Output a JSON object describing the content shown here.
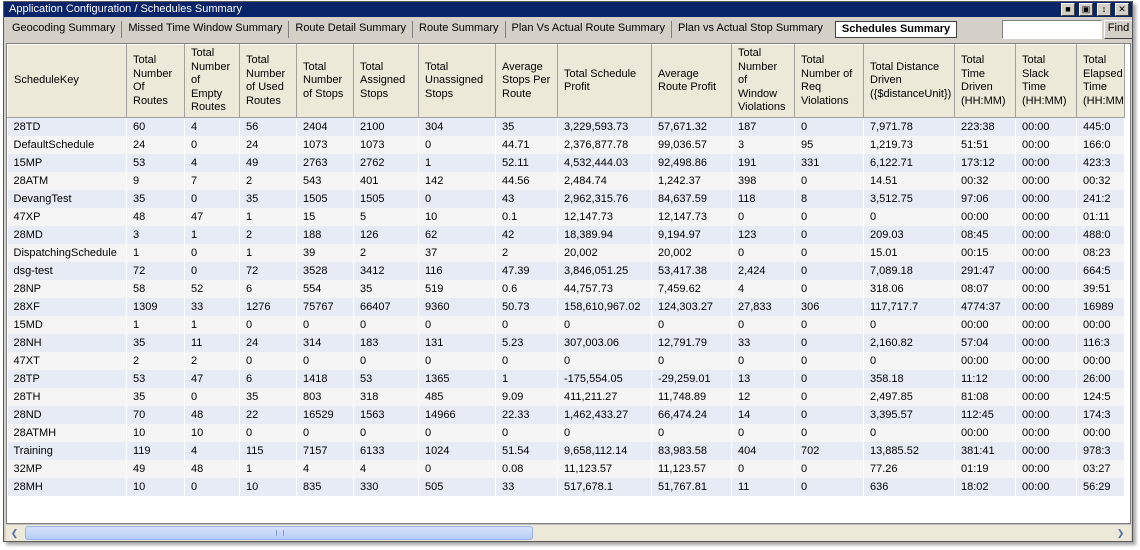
{
  "window": {
    "title": "Application Configuration / Schedules Summary",
    "buttons": [
      "save-icon",
      "lock-icon",
      "pin-icon",
      "close-icon"
    ]
  },
  "tabs": [
    {
      "label": "Geocoding Summary",
      "active": false
    },
    {
      "label": "Missed Time Window Summary",
      "active": false
    },
    {
      "label": "Route Detail Summary",
      "active": false
    },
    {
      "label": "Route Summary",
      "active": false
    },
    {
      "label": "Plan Vs Actual Route Summary",
      "active": false
    },
    {
      "label": "Plan vs Actual Stop Summary",
      "active": false
    },
    {
      "label": "Schedules Summary",
      "active": true
    }
  ],
  "search": {
    "value": "",
    "find_label": "Find"
  },
  "table": {
    "columns": [
      "ScheduleKey",
      "Total Number Of Routes",
      "Total Number of Empty Routes",
      "Total Number of Used Routes",
      "Total Number of Stops",
      "Total Assigned Stops",
      "Total Unassigned Stops",
      "Average Stops Per Route",
      "Total Schedule Profit",
      "Average Route Profit",
      "Total Number of Window Violations",
      "Total Number of Req Violations",
      "Total Distance Driven ({$distanceUnit})",
      "Total Time Driven (HH:MM)",
      "Total Slack Time (HH:MM)",
      "Total Elapsed Time (HH:MM)"
    ],
    "rows": [
      [
        "28TD",
        "60",
        "4",
        "56",
        "2404",
        "2100",
        "304",
        "35",
        "3,229,593.73",
        "57,671.32",
        "187",
        "0",
        "7,971.78",
        "223:38",
        "00:00",
        "445:0"
      ],
      [
        "DefaultSchedule",
        "24",
        "0",
        "24",
        "1073",
        "1073",
        "0",
        "44.71",
        "2,376,877.78",
        "99,036.57",
        "3",
        "95",
        "1,219.73",
        "51:51",
        "00:00",
        "166:0"
      ],
      [
        "15MP",
        "53",
        "4",
        "49",
        "2763",
        "2762",
        "1",
        "52.11",
        "4,532,444.03",
        "92,498.86",
        "191",
        "331",
        "6,122.71",
        "173:12",
        "00:00",
        "423:3"
      ],
      [
        "28ATM",
        "9",
        "7",
        "2",
        "543",
        "401",
        "142",
        "44.56",
        "2,484.74",
        "1,242.37",
        "398",
        "0",
        "14.51",
        "00:32",
        "00:00",
        "00:32"
      ],
      [
        "DevangTest",
        "35",
        "0",
        "35",
        "1505",
        "1505",
        "0",
        "43",
        "2,962,315.76",
        "84,637.59",
        "118",
        "8",
        "3,512.75",
        "97:06",
        "00:00",
        "241:2"
      ],
      [
        "47XP",
        "48",
        "47",
        "1",
        "15",
        "5",
        "10",
        "0.1",
        "12,147.73",
        "12,147.73",
        "0",
        "0",
        "0",
        "00:00",
        "00:00",
        "01:11"
      ],
      [
        "28MD",
        "3",
        "1",
        "2",
        "188",
        "126",
        "62",
        "42",
        "18,389.94",
        "9,194.97",
        "123",
        "0",
        "209.03",
        "08:45",
        "00:00",
        "488:0"
      ],
      [
        "DispatchingSchedule",
        "1",
        "0",
        "1",
        "39",
        "2",
        "37",
        "2",
        "20,002",
        "20,002",
        "0",
        "0",
        "15.01",
        "00:15",
        "00:00",
        "08:23"
      ],
      [
        "dsg-test",
        "72",
        "0",
        "72",
        "3528",
        "3412",
        "116",
        "47.39",
        "3,846,051.25",
        "53,417.38",
        "2,424",
        "0",
        "7,089.18",
        "291:47",
        "00:00",
        "664:5"
      ],
      [
        "28NP",
        "58",
        "52",
        "6",
        "554",
        "35",
        "519",
        "0.6",
        "44,757.73",
        "7,459.62",
        "4",
        "0",
        "318.06",
        "08:07",
        "00:00",
        "39:51"
      ],
      [
        "28XF",
        "1309",
        "33",
        "1276",
        "75767",
        "66407",
        "9360",
        "50.73",
        "158,610,967.02",
        "124,303.27",
        "27,833",
        "306",
        "117,717.7",
        "4774:37",
        "00:00",
        "16989"
      ],
      [
        "15MD",
        "1",
        "1",
        "0",
        "0",
        "0",
        "0",
        "0",
        "0",
        "0",
        "0",
        "0",
        "0",
        "00:00",
        "00:00",
        "00:00"
      ],
      [
        "28NH",
        "35",
        "11",
        "24",
        "314",
        "183",
        "131",
        "5.23",
        "307,003.06",
        "12,791.79",
        "33",
        "0",
        "2,160.82",
        "57:04",
        "00:00",
        "116:3"
      ],
      [
        "47XT",
        "2",
        "2",
        "0",
        "0",
        "0",
        "0",
        "0",
        "0",
        "0",
        "0",
        "0",
        "0",
        "00:00",
        "00:00",
        "00:00"
      ],
      [
        "28TP",
        "53",
        "47",
        "6",
        "1418",
        "53",
        "1365",
        "1",
        "-175,554.05",
        "-29,259.01",
        "13",
        "0",
        "358.18",
        "11:12",
        "00:00",
        "26:00"
      ],
      [
        "28TH",
        "35",
        "0",
        "35",
        "803",
        "318",
        "485",
        "9.09",
        "411,211.27",
        "11,748.89",
        "12",
        "0",
        "2,497.85",
        "81:08",
        "00:00",
        "124:5"
      ],
      [
        "28ND",
        "70",
        "48",
        "22",
        "16529",
        "1563",
        "14966",
        "22.33",
        "1,462,433.27",
        "66,474.24",
        "14",
        "0",
        "3,395.57",
        "112:45",
        "00:00",
        "174:3"
      ],
      [
        "28ATMH",
        "10",
        "10",
        "0",
        "0",
        "0",
        "0",
        "0",
        "0",
        "0",
        "0",
        "0",
        "0",
        "00:00",
        "00:00",
        "00:00"
      ],
      [
        "Training",
        "119",
        "4",
        "115",
        "7157",
        "6133",
        "1024",
        "51.54",
        "9,658,112.14",
        "83,983.58",
        "404",
        "702",
        "13,885.52",
        "381:41",
        "00:00",
        "978:3"
      ],
      [
        "32MP",
        "49",
        "48",
        "1",
        "4",
        "4",
        "0",
        "0.08",
        "11,123.57",
        "11,123.57",
        "0",
        "0",
        "77.26",
        "01:19",
        "00:00",
        "03:27"
      ],
      [
        "28MH",
        "10",
        "0",
        "10",
        "835",
        "330",
        "505",
        "33",
        "517,678.1",
        "51,767.81",
        "11",
        "0",
        "636",
        "18:02",
        "00:00",
        "56:29"
      ]
    ]
  },
  "scrollbar": {
    "left_icon": "scroll-left-arrow-icon",
    "right_icon": "scroll-right-arrow-icon"
  },
  "colors": {
    "title_bar": "#0a246a",
    "header_bg": "#ece9d8",
    "row_even": "#e6ebf5",
    "row_odd": "#f5f5f5",
    "scroll_thumb": "#c6d7f7"
  }
}
